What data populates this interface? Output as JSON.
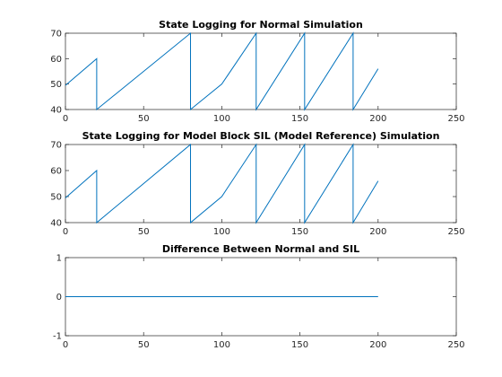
{
  "chart_data": [
    {
      "type": "line",
      "title": "State Logging for Normal Simulation",
      "xlim": [
        0,
        250
      ],
      "ylim": [
        40,
        70
      ],
      "xticks": [
        "0",
        "50",
        "100",
        "150",
        "200",
        "250"
      ],
      "yticks": [
        "40",
        "50",
        "60",
        "70"
      ],
      "grid": false,
      "series": [
        {
          "color": "#0072BD",
          "points": [
            [
              0,
              49.5
            ],
            [
              20,
              60
            ],
            [
              20,
              40
            ],
            [
              80,
              70
            ],
            [
              80,
              40
            ],
            [
              100,
              50
            ],
            [
              122,
              70
            ],
            [
              122,
              40
            ],
            [
              153,
              70
            ],
            [
              153,
              40
            ],
            [
              184,
              70
            ],
            [
              184,
              40
            ],
            [
              200,
              56
            ]
          ]
        }
      ]
    },
    {
      "type": "line",
      "title": "State Logging for Model Block SIL (Model Reference) Simulation",
      "xlim": [
        0,
        250
      ],
      "ylim": [
        40,
        70
      ],
      "xticks": [
        "0",
        "50",
        "100",
        "150",
        "200",
        "250"
      ],
      "yticks": [
        "40",
        "50",
        "60",
        "70"
      ],
      "grid": false,
      "series": [
        {
          "color": "#0072BD",
          "points": [
            [
              0,
              49.5
            ],
            [
              20,
              60
            ],
            [
              20,
              40
            ],
            [
              80,
              70
            ],
            [
              80,
              40
            ],
            [
              100,
              50
            ],
            [
              122,
              70
            ],
            [
              122,
              40
            ],
            [
              153,
              70
            ],
            [
              153,
              40
            ],
            [
              184,
              70
            ],
            [
              184,
              40
            ],
            [
              200,
              56
            ]
          ]
        }
      ]
    },
    {
      "type": "line",
      "title": "Difference Between Normal and SIL",
      "xlim": [
        0,
        250
      ],
      "ylim": [
        -1,
        1
      ],
      "xticks": [
        "0",
        "50",
        "100",
        "150",
        "200",
        "250"
      ],
      "yticks": [
        "-1",
        "0",
        "1"
      ],
      "grid": false,
      "series": [
        {
          "color": "#0072BD",
          "points": [
            [
              0,
              0
            ],
            [
              200,
              0
            ]
          ]
        }
      ]
    }
  ]
}
